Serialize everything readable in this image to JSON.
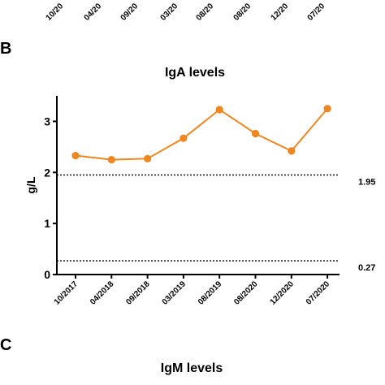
{
  "panels": {
    "top_fragment": {
      "tick_labels": [
        "10/20",
        "04/20",
        "09/20",
        "03/20",
        "08/20",
        "08/20",
        "12/20",
        "07/20"
      ]
    },
    "b_letter": "B",
    "c_letter": "C",
    "c_title": "IgM levels"
  },
  "chart_data": {
    "type": "line",
    "title": "IgA levels",
    "xlabel": "",
    "ylabel": "g/L",
    "categories": [
      "10/2017",
      "04/2018",
      "09/2018",
      "03/2019",
      "08/2019",
      "08/2020",
      "12/2020",
      "07/2020"
    ],
    "series": [
      {
        "values": [
          2.33,
          2.25,
          2.27,
          2.67,
          3.23,
          2.76,
          2.42,
          3.25
        ]
      }
    ],
    "ylim": [
      0,
      3.5
    ],
    "yticks": [
      "0",
      "1",
      "2",
      "3"
    ],
    "reference_lines": [
      {
        "value": 1.95,
        "label": "1.95"
      },
      {
        "value": 0.27,
        "label": "0.27"
      }
    ],
    "grid": false,
    "series_color": "#f0861f"
  }
}
